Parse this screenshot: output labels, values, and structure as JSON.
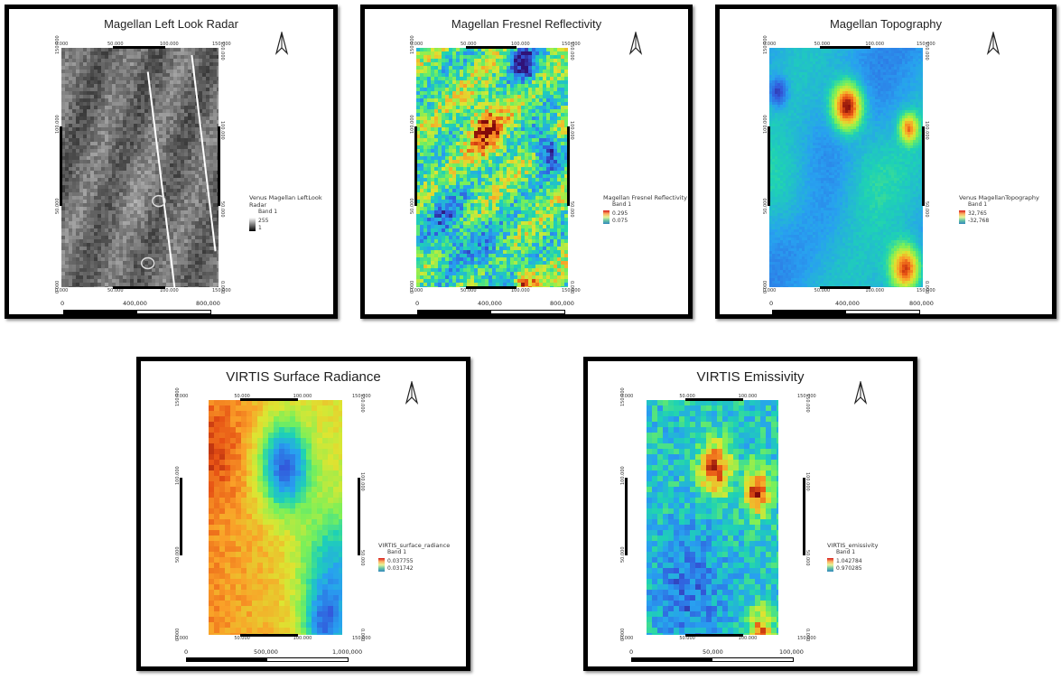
{
  "panels": [
    {
      "id": "p1",
      "title": "Magellan Left Look Radar",
      "top_ticks": [
        "0.000",
        "50.000",
        "100.000",
        "150.000"
      ],
      "bottom_ticks": [
        "0.000",
        "50.000",
        "100.000",
        "150.000"
      ],
      "left_ticks": [
        "150.000",
        "100.000",
        "50.000",
        "0.000"
      ],
      "right_ticks": [
        "150.000",
        "100.000",
        "50.000",
        "0.000"
      ],
      "legend": {
        "title": "Venus Magellan LeftLook Radar",
        "band": "Band 1",
        "max": "255",
        "min": "1"
      },
      "scale": {
        "start": "0",
        "mid": "400,000",
        "end": "800,000"
      },
      "colormap": "gray"
    },
    {
      "id": "p2",
      "title": "Magellan Fresnel Reflectivity",
      "top_ticks": [
        "0.000",
        "50.000",
        "100.000",
        "150.000"
      ],
      "bottom_ticks": [
        "0.000",
        "50.000",
        "100.000",
        "150.000"
      ],
      "left_ticks": [
        "150.000",
        "100.000",
        "50.000",
        "0.000"
      ],
      "right_ticks": [
        "150.000",
        "100.000",
        "50.000",
        "0.000"
      ],
      "legend": {
        "title": "Magellan Fresnel Reflectivity",
        "band": "Band 1",
        "max": "0.295",
        "min": "0.075"
      },
      "scale": {
        "start": "0",
        "mid": "400,000",
        "end": "800,000"
      },
      "colormap": "turbo"
    },
    {
      "id": "p3",
      "title": "Magellan Topography",
      "top_ticks": [
        "0.000",
        "50.000",
        "100.000",
        "150.000"
      ],
      "bottom_ticks": [
        "0.000",
        "50.000",
        "100.000",
        "150.000"
      ],
      "left_ticks": [
        "150.000",
        "100.000",
        "50.000",
        "0.000"
      ],
      "right_ticks": [
        "150.000",
        "100.000",
        "50.000",
        "0.000"
      ],
      "legend": {
        "title": "Venus MagellanTopography",
        "band": "Band 1",
        "max": "32,765",
        "min": "-32,768"
      },
      "scale": {
        "start": "0",
        "mid": "400,000",
        "end": "800,000"
      },
      "colormap": "turbo"
    },
    {
      "id": "p4",
      "title": "VIRTIS Surface Radiance",
      "top_ticks": [
        "0.000",
        "50.000",
        "100.000",
        "150.000"
      ],
      "bottom_ticks": [
        "0.000",
        "50.000",
        "100.000",
        "150.000"
      ],
      "left_ticks": [
        "150.000",
        "100.000",
        "50.000",
        "0.000"
      ],
      "right_ticks": [
        "150.000",
        "100.000",
        "50.000",
        "0.000"
      ],
      "legend": {
        "title": "VIRTIS_surface_radiance",
        "band": "Band 1",
        "max": "0.037755",
        "min": "0.031742"
      },
      "scale": {
        "start": "0",
        "mid": "500,000",
        "end": "1,000,000"
      },
      "colormap": "turbo"
    },
    {
      "id": "p5",
      "title": "VIRTIS Emissivity",
      "top_ticks": [
        "0.000",
        "50.000",
        "100.000",
        "150.000"
      ],
      "bottom_ticks": [
        "0.000",
        "50.000",
        "100.000",
        "150.000"
      ],
      "left_ticks": [
        "150.000",
        "100.000",
        "50.000",
        "0.000"
      ],
      "right_ticks": [
        "150.000",
        "100.000",
        "50.000",
        "0.000"
      ],
      "legend": {
        "title": "VIRTIS_emissivity",
        "band": "Band 1",
        "max": "1.042784",
        "min": "0.970285"
      },
      "scale": {
        "start": "0",
        "mid": "50,000",
        "end": "100,000"
      },
      "colormap": "turbo"
    }
  ]
}
